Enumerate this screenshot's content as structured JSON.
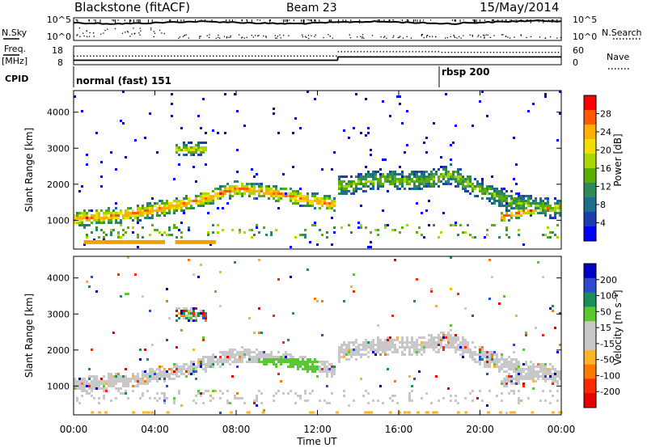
{
  "header": {
    "station": "Blackstone (fitACF)",
    "beam": "Beam 23",
    "date": "15/May/2014"
  },
  "left_labels": {
    "nsky": "N.Sky",
    "freq": "Freq.",
    "mhz": "[MHz]",
    "cpid": "CPID"
  },
  "right_labels": {
    "nsearch": "N.Search",
    "nave": "Nave"
  },
  "noise_panel": {
    "ytick_top": "10^5",
    "ytick_bottom": "10^0",
    "rtick_top": "10^5",
    "rtick_bottom": "10^0"
  },
  "freq_panel": {
    "ytick_top": "18",
    "ytick_bottom": "8",
    "rtick_top": "60",
    "rtick_bottom": "0",
    "freq_mhz_levels": [
      {
        "from_hour": 0,
        "to_hour": 13,
        "value": 10.4
      },
      {
        "from_hour": 13,
        "to_hour": 24,
        "value": 12.2
      }
    ],
    "nave_levels": [
      {
        "from_hour": 0,
        "to_hour": 13,
        "value": 28
      },
      {
        "from_hour": 13,
        "to_hour": 18.1,
        "value": 42
      },
      {
        "from_hour": 18.1,
        "to_hour": 24,
        "value": 40
      }
    ]
  },
  "cpid_segments": [
    {
      "label": "normal (fast) 151",
      "start_hour": 0
    },
    {
      "label": "rbsp 200",
      "start_hour": 18.1
    }
  ],
  "chart_data": [
    {
      "type": "heatmap",
      "panel": "power",
      "ylabel": "Slant Range [km]",
      "xlabel": "",
      "xlim_hours": [
        0,
        24
      ],
      "ylim_km": [
        200,
        4600
      ],
      "yticks": [
        "1000",
        "2000",
        "3000",
        "4000"
      ],
      "colorbar": {
        "label": "Power [dB]",
        "ticks": [
          "28",
          "24",
          "20",
          "16",
          "12",
          "8",
          "4"
        ],
        "colors": [
          "#ff0000",
          "#ff5a00",
          "#ffb000",
          "#f0e000",
          "#a8d800",
          "#5ab000",
          "#2e8b57",
          "#1a6f8f",
          "#1a3fb0",
          "#0000ff"
        ]
      },
      "bands": [
        {
          "name": "",
          "points": [
            [
              0,
              1050
            ],
            [
              3,
              1200
            ],
            [
              6,
              1550
            ],
            [
              8,
              1900
            ],
            [
              10,
              1750
            ],
            [
              12.8,
              1450
            ]
          ],
          "halfwidth_km": 220,
          "core_db": 24
        },
        {
          "name": "",
          "points": [
            [
              13,
              1950
            ],
            [
              15,
              2150
            ],
            [
              17,
              2100
            ],
            [
              18.5,
              2300
            ],
            [
              20,
              1850
            ],
            [
              22,
              1450
            ],
            [
              24,
              1300
            ]
          ],
          "halfwidth_km": 280,
          "core_db": 14
        },
        {
          "name": "",
          "points": [
            [
              21,
              1100
            ],
            [
              22.5,
              1300
            ],
            [
              24,
              1400
            ]
          ],
          "halfwidth_km": 150,
          "core_db": 26
        },
        {
          "name": "",
          "points": [
            [
              5,
              3000
            ],
            [
              6.5,
              3000
            ]
          ],
          "halfwidth_km": 180,
          "core_db": 18
        }
      ]
    },
    {
      "type": "heatmap",
      "panel": "velocity",
      "ylabel": "Slant Range [km]",
      "xlabel": "Time UT",
      "xlim_hours": [
        0,
        24
      ],
      "ylim_km": [
        200,
        4600
      ],
      "yticks": [
        "1000",
        "2000",
        "3000",
        "4000"
      ],
      "xticks": [
        "00:00",
        "04:00",
        "08:00",
        "12:00",
        "16:00",
        "20:00",
        "00:00"
      ],
      "colorbar": {
        "label": "Velocity [m s⁻¹]",
        "ticks": [
          "200",
          "100",
          "50",
          "15",
          "-15",
          "-50",
          "-100",
          "-200"
        ],
        "colors": [
          "#0000c8",
          "#2d4bd2",
          "#1a8f5a",
          "#5ac832",
          "#c8c8c8",
          "#c8c8c8",
          "#ffb428",
          "#ff7800",
          "#ff2800",
          "#e60000"
        ]
      }
    }
  ]
}
